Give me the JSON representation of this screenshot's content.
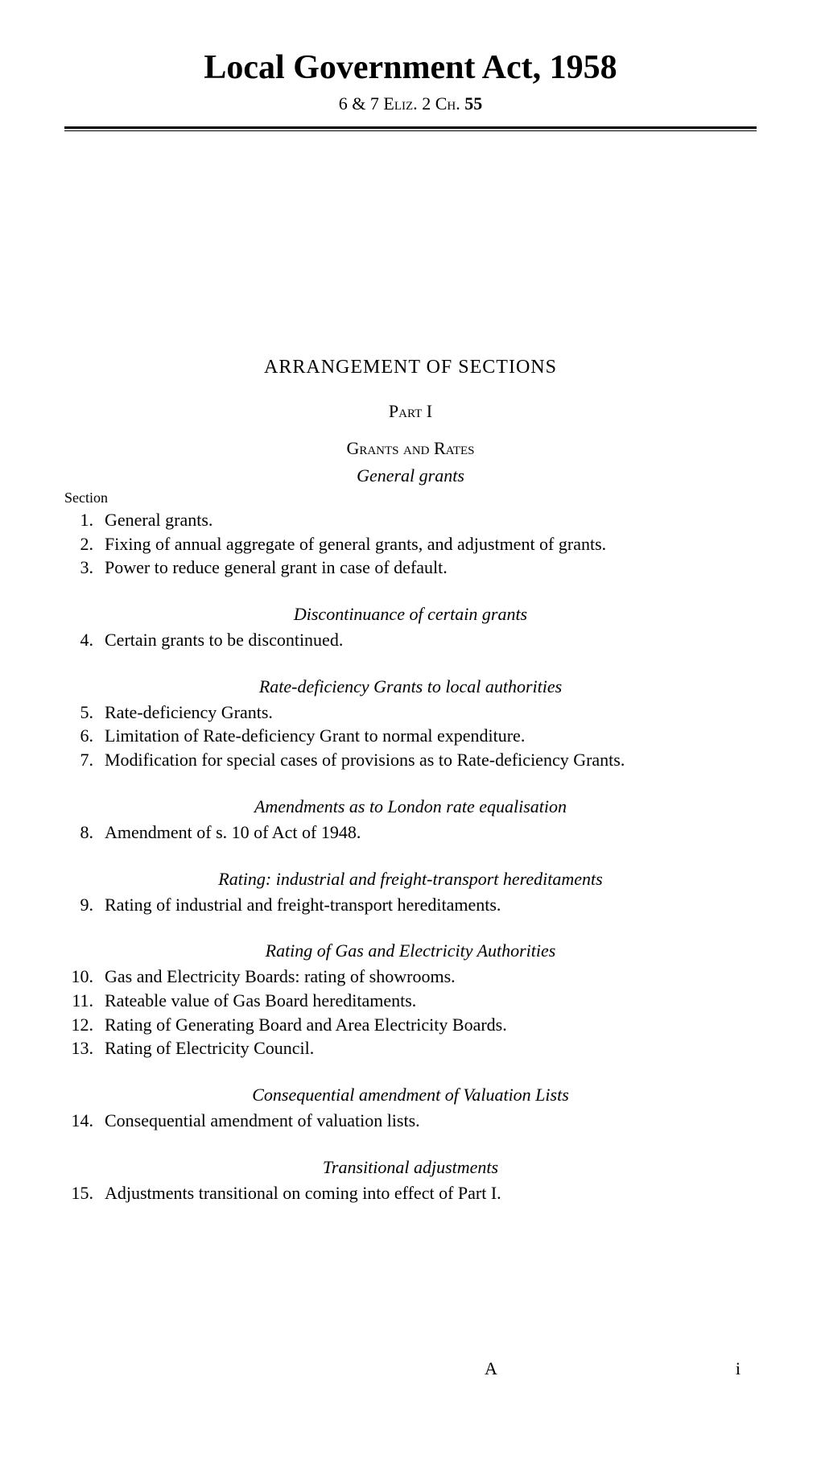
{
  "header": {
    "title": "Local Government Act, 1958",
    "subtitle_prefix": "6 & 7 ",
    "subtitle_eliz": "Eliz.",
    "subtitle_mid": " 2   ",
    "subtitle_ch": "Ch.",
    "subtitle_num": " 55"
  },
  "arrangement_heading": "ARRANGEMENT OF SECTIONS",
  "part_heading": "Part I",
  "section_heading": "Grants and Rates",
  "section_label": "Section",
  "subsections": [
    {
      "heading": "General grants",
      "items": [
        {
          "num": "1.",
          "text": "General grants."
        },
        {
          "num": "2.",
          "text": "Fixing of annual aggregate of general grants, and adjustment of grants."
        },
        {
          "num": "3.",
          "text": "Power to reduce general grant in case of default."
        }
      ]
    },
    {
      "heading": "Discontinuance of certain grants",
      "items": [
        {
          "num": "4.",
          "text": "Certain grants to be discontinued."
        }
      ]
    },
    {
      "heading": "Rate-deficiency Grants to local authorities",
      "items": [
        {
          "num": "5.",
          "text": "Rate-deficiency Grants."
        },
        {
          "num": "6.",
          "text": "Limitation of Rate-deficiency Grant to normal expenditure."
        },
        {
          "num": "7.",
          "text": "Modification for special cases of provisions as to Rate-deficiency Grants."
        }
      ]
    },
    {
      "heading": "Amendments as to London rate equalisation",
      "items": [
        {
          "num": "8.",
          "text": "Amendment of s. 10 of Act of 1948."
        }
      ]
    },
    {
      "heading": "Rating: industrial and freight-transport hereditaments",
      "items": [
        {
          "num": "9.",
          "text": "Rating of industrial and freight-transport hereditaments."
        }
      ]
    },
    {
      "heading": "Rating of Gas and Electricity Authorities",
      "items": [
        {
          "num": "10.",
          "text": "Gas and Electricity Boards: rating of showrooms."
        },
        {
          "num": "11.",
          "text": "Rateable value of Gas Board hereditaments."
        },
        {
          "num": "12.",
          "text": "Rating of Generating Board and Area Electricity Boards."
        },
        {
          "num": "13.",
          "text": "Rating of Electricity Council."
        }
      ]
    },
    {
      "heading": "Consequential amendment of Valuation Lists",
      "items": [
        {
          "num": "14.",
          "text": "Consequential amendment of valuation lists."
        }
      ]
    },
    {
      "heading": "Transitional adjustments",
      "items": [
        {
          "num": "15.",
          "text": "Adjustments transitional on coming into effect of Part I."
        }
      ]
    }
  ],
  "footer": {
    "signature_mark": "A",
    "page_number": "i"
  }
}
